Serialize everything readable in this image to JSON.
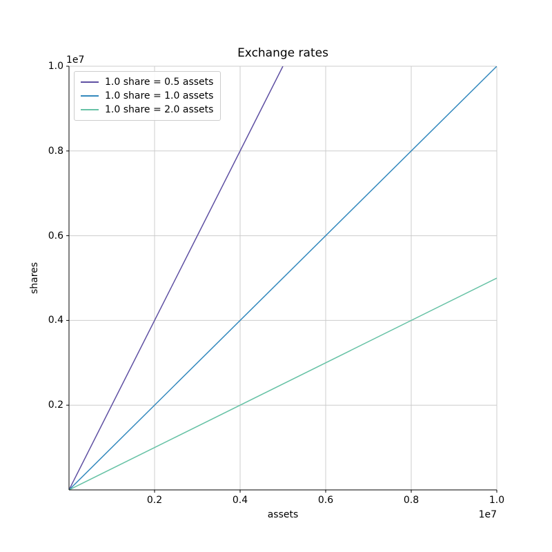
{
  "chart_data": {
    "type": "line",
    "title": "Exchange rates",
    "xlabel": "assets",
    "ylabel": "shares",
    "x_offset_text": "1e7",
    "y_offset_text": "1e7",
    "xlim": [
      0,
      10000000
    ],
    "ylim": [
      0,
      10000000
    ],
    "grid": true,
    "legend_position": "upper left",
    "xticks": {
      "values": [
        2000000,
        4000000,
        6000000,
        8000000,
        10000000
      ],
      "labels": [
        "0.2",
        "0.4",
        "0.6",
        "0.8",
        "1.0"
      ]
    },
    "yticks": {
      "values": [
        2000000,
        4000000,
        6000000,
        8000000,
        10000000
      ],
      "labels": [
        "0.2",
        "0.4",
        "0.6",
        "0.8",
        "1.0"
      ]
    },
    "series": [
      {
        "name": "1.0 share = 0.5 assets",
        "rate_assets_per_share": 0.5,
        "color": "#5e4fa2",
        "x": [
          0,
          5000000
        ],
        "y": [
          0,
          10000000
        ]
      },
      {
        "name": "1.0 share = 1.0 assets",
        "rate_assets_per_share": 1.0,
        "color": "#3288bd",
        "x": [
          0,
          10000000
        ],
        "y": [
          0,
          10000000
        ]
      },
      {
        "name": "1.0 share = 2.0 assets",
        "rate_assets_per_share": 2.0,
        "color": "#66c2a5",
        "x": [
          0,
          10000000
        ],
        "y": [
          0,
          5000000
        ]
      }
    ],
    "colors": {
      "grid": "#cccccc",
      "spine": "#000000",
      "text": "#000000",
      "legend_border": "#cccccc",
      "background": "#ffffff"
    }
  }
}
